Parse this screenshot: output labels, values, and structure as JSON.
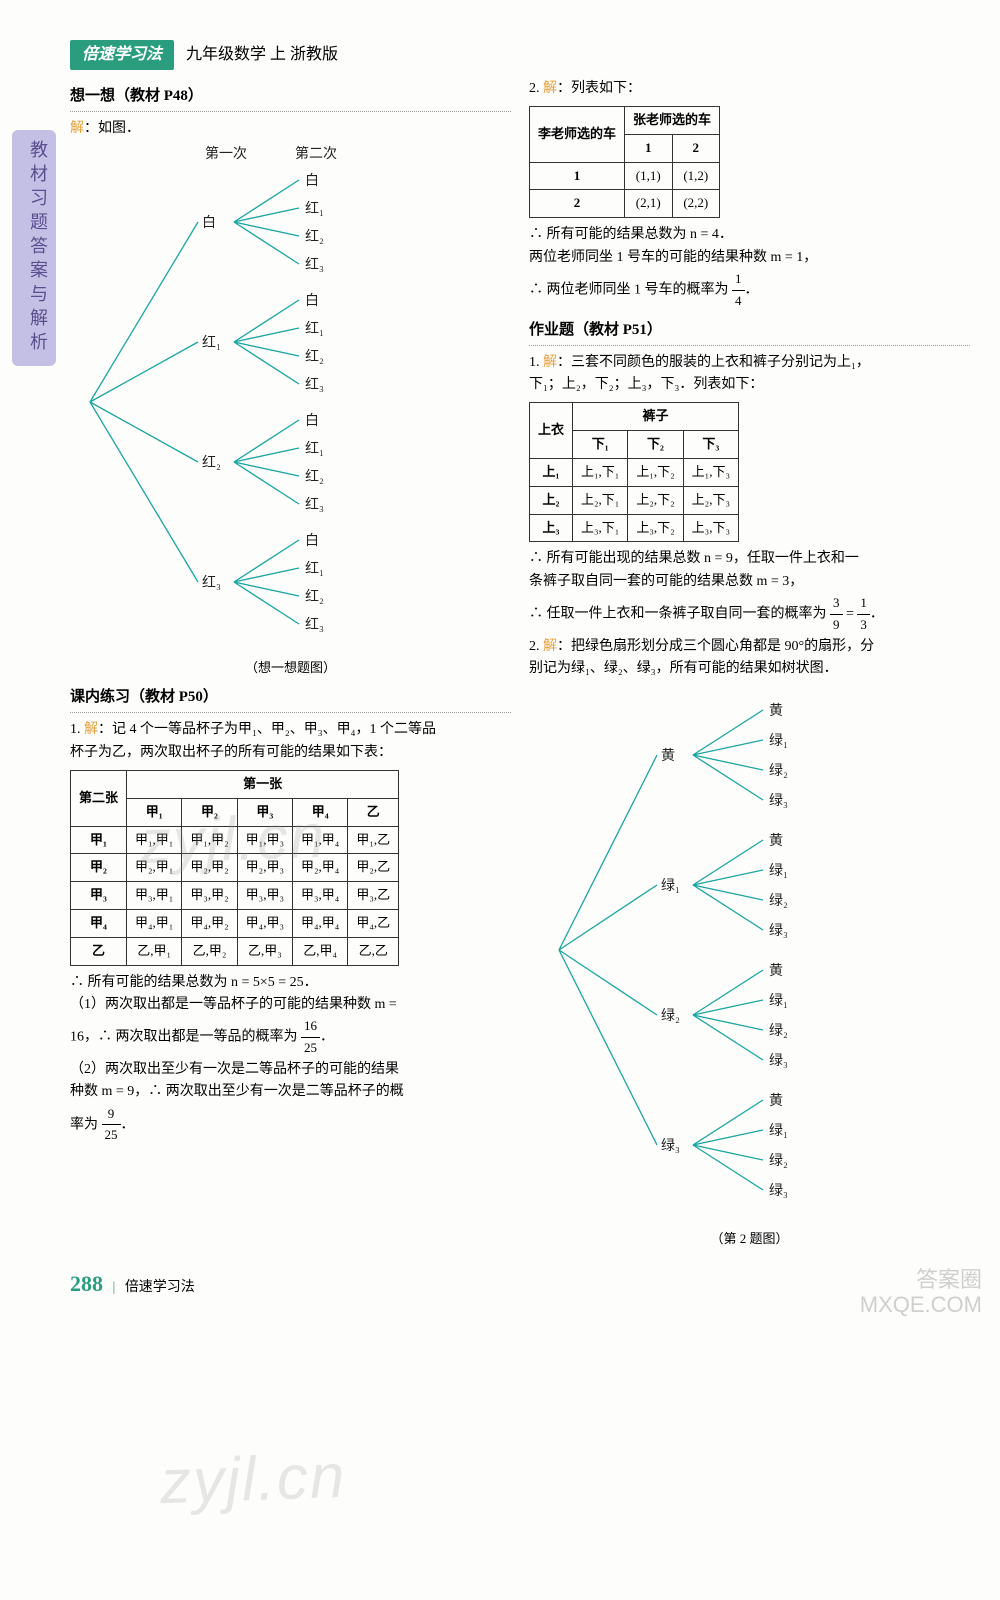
{
  "header": {
    "badge": "倍速学习法",
    "subject": "九年级数学 上 浙教版"
  },
  "sidebar": "教材习题答案与解析",
  "left": {
    "think": {
      "title": "想一想（教材 P48）",
      "ans_prefix": "解",
      "ans_text": "：如图．",
      "tree": {
        "caption": "（想一想题图）",
        "lvl1_heads": [
          "第一次",
          "第二次"
        ],
        "lvl1": [
          "白",
          "红₁",
          "红₂",
          "红₃"
        ],
        "lvl2": [
          "白",
          "红₁",
          "红₂",
          "红₃"
        ],
        "color": "#1aa5a0"
      }
    },
    "practice": {
      "title": "课内练习（教材 P50）",
      "q1_prefix": "1. ",
      "q1_ans": "解",
      "q1_text1": "：记 4 个一等品杯子为甲₁、甲₂、甲₃、甲₄，1 个二等品",
      "q1_text2": "杯子为乙，两次取出杯子的所有可能的结果如下表：",
      "table": {
        "top_header": "第一张",
        "left_header": "第二张",
        "cols": [
          "甲₁",
          "甲₂",
          "甲₃",
          "甲₄",
          "乙"
        ],
        "rows": [
          "甲₁",
          "甲₂",
          "甲₃",
          "甲₄",
          "乙"
        ],
        "cells": [
          [
            "甲₁,甲₁",
            "甲₁,甲₂",
            "甲₁,甲₃",
            "甲₁,甲₄",
            "甲₁,乙"
          ],
          [
            "甲₂,甲₁",
            "甲₂,甲₂",
            "甲₂,甲₃",
            "甲₂,甲₄",
            "甲₂,乙"
          ],
          [
            "甲₃,甲₁",
            "甲₃,甲₂",
            "甲₃,甲₃",
            "甲₃,甲₄",
            "甲₃,乙"
          ],
          [
            "甲₄,甲₁",
            "甲₄,甲₂",
            "甲₄,甲₃",
            "甲₄,甲₄",
            "甲₄,乙"
          ],
          [
            "乙,甲₁",
            "乙,甲₂",
            "乙,甲₃",
            "乙,甲₄",
            "乙,乙"
          ]
        ]
      },
      "conc1": "∴ 所有可能的结果总数为 n = 5×5 = 25．",
      "conc2a": "（1）两次取出都是一等品杯子的可能的结果种数 m =",
      "conc2b": "16，∴ 两次取出都是一等品的概率为",
      "frac1": {
        "n": "16",
        "d": "25"
      },
      "conc3a": "（2）两次取出至少有一次是二等品杯子的可能的结果",
      "conc3b": "种数 m = 9，∴ 两次取出至少有一次是二等品杯子的概",
      "conc3c": "率为",
      "frac2": {
        "n": "9",
        "d": "25"
      }
    }
  },
  "right": {
    "q2_prefix": "2. ",
    "q2_ans": "解",
    "q2_text": "：列表如下：",
    "table1": {
      "h1": "李老师选的车",
      "h2": "张老师选的车",
      "cols": [
        "1",
        "2"
      ],
      "rows": [
        "1",
        "2"
      ],
      "cells": [
        [
          "(1,1)",
          "(1,2)"
        ],
        [
          "(2,1)",
          "(2,2)"
        ]
      ]
    },
    "q2_l1": "∴ 所有可能的结果总数为 n = 4．",
    "q2_l2": "两位老师同坐 1 号车的可能的结果种数 m = 1，",
    "q2_l3a": "∴ 两位老师同坐 1 号车的概率为",
    "q2_frac": {
      "n": "1",
      "d": "4"
    },
    "hw": {
      "title": "作业题（教材 P51）",
      "q1_prefix": "1. ",
      "q1_ans": "解",
      "q1_text1": "：三套不同颜色的服装的上衣和裤子分别记为上₁，",
      "q1_text2": "下₁；上₂，下₂；上₃，下₃．列表如下：",
      "table": {
        "h1": "上衣",
        "h2": "裤子",
        "cols": [
          "下₁",
          "下₂",
          "下₃"
        ],
        "rows": [
          "上₁",
          "上₂",
          "上₃"
        ],
        "cells": [
          [
            "上₁,下₁",
            "上₁,下₂",
            "上₁,下₃"
          ],
          [
            "上₂,下₁",
            "上₂,下₂",
            "上₂,下₃"
          ],
          [
            "上₃,下₁",
            "上₃,下₂",
            "上₃,下₃"
          ]
        ]
      },
      "l1": "∴ 所有可能出现的结果总数 n = 9，任取一件上衣和一",
      "l2": "条裤子取自同一套的可能的结果总数 m = 3，",
      "l3a": "∴ 任取一件上衣和一条裤子取自同一套的概率为",
      "frac1": {
        "n": "3",
        "d": "9"
      },
      "eq": "=",
      "frac2": {
        "n": "1",
        "d": "3"
      },
      "q2_prefix": "2. ",
      "q2_ans": "解",
      "q2_text1": "：把绿色扇形划分成三个圆心角都是 90°的扇形，分",
      "q2_text2": "别记为绿₁、绿₂、绿₃，所有可能的结果如树状图．",
      "tree": {
        "caption": "（第 2 题图）",
        "lvl1": [
          "黄",
          "绿₁",
          "绿₂",
          "绿₃"
        ],
        "lvl2": [
          "黄",
          "绿₁",
          "绿₂",
          "绿₃"
        ],
        "color": "#1aa5a0"
      }
    }
  },
  "footer": {
    "page": "288",
    "series": "倍速学习法"
  },
  "watermarks": [
    "zyjl.cn",
    "zyjl.cn"
  ],
  "corner": [
    "答案圈",
    "MXQE.COM"
  ]
}
